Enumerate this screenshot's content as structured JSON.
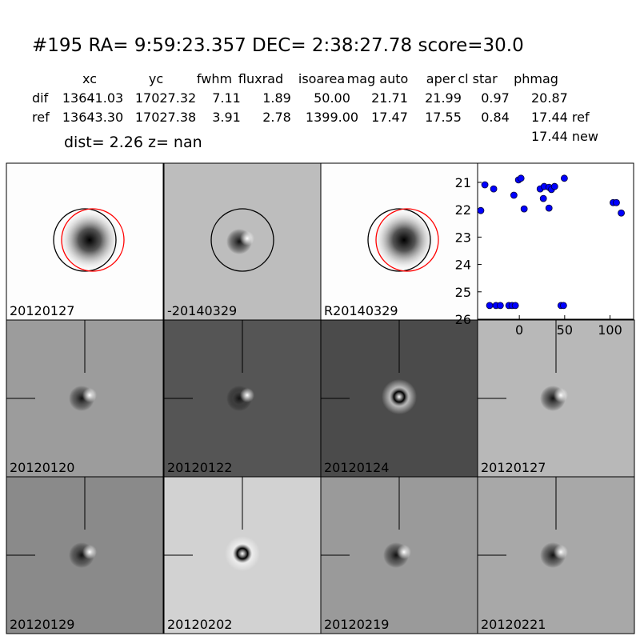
{
  "header": {
    "title": "#195   RA= 9:59:23.357 DEC= 2:38:27.78      score=30.0",
    "table": {
      "columns": [
        "xc",
        "yc",
        "fwhm",
        "fluxrad",
        "isoarea",
        "mag auto",
        "aper",
        "cl star",
        "phmag"
      ],
      "rows": [
        {
          "label": "dif",
          "cells": [
            "13641.03",
            "17027.32",
            "7.11",
            "1.89",
            "50.00",
            "21.71",
            "21.99",
            "0.97",
            "20.87"
          ]
        },
        {
          "label": "ref",
          "cells": [
            "13643.30",
            "17027.38",
            "3.91",
            "2.78",
            "1399.00",
            "17.47",
            "17.55",
            "0.84",
            "17.44 ref"
          ]
        }
      ],
      "extra": "17.44 new"
    },
    "dist": "dist=  2.26      z=   nan"
  },
  "panels": [
    {
      "label": "20120127"
    },
    {
      "label": "-20140329"
    },
    {
      "label": "R20140329"
    },
    {
      "label": "20120120"
    },
    {
      "label": "20120122"
    },
    {
      "label": "20120124"
    },
    {
      "label": "20120127",
      "label_color": "#ff0000"
    },
    {
      "label": "20120129"
    },
    {
      "label": "20120202"
    },
    {
      "label": "20120219"
    },
    {
      "label": "20120221"
    }
  ],
  "chart_data": {
    "type": "scatter",
    "x": [
      -42.5,
      -38,
      -28.3,
      -32.7,
      -25.7,
      -21,
      -11.5,
      -8,
      -4.4,
      -6,
      -0.9,
      1.8,
      5.3,
      23,
      27.4,
      26.5,
      32.7,
      35.4,
      32.7,
      38.9,
      46,
      48.7,
      49.6,
      103.5,
      107,
      112.4
    ],
    "series": [
      {
        "color": "#0000ff",
        "values": [
          22.03,
          21.09,
          21.24,
          25.5,
          25.5,
          25.5,
          25.5,
          25.5,
          25.5,
          21.47,
          20.91,
          20.85,
          21.97,
          21.24,
          21.15,
          21.59,
          21.18,
          21.26,
          21.94,
          21.15,
          25.5,
          25.5,
          20.85,
          21.74,
          21.74,
          22.12
        ]
      }
    ],
    "xlim": [
      -46,
      126
    ],
    "ylim": [
      20.3,
      26
    ],
    "y_inverted": true,
    "xticks": [
      0,
      50,
      100
    ],
    "yticks": [
      21,
      22,
      23,
      24,
      25,
      26
    ]
  }
}
